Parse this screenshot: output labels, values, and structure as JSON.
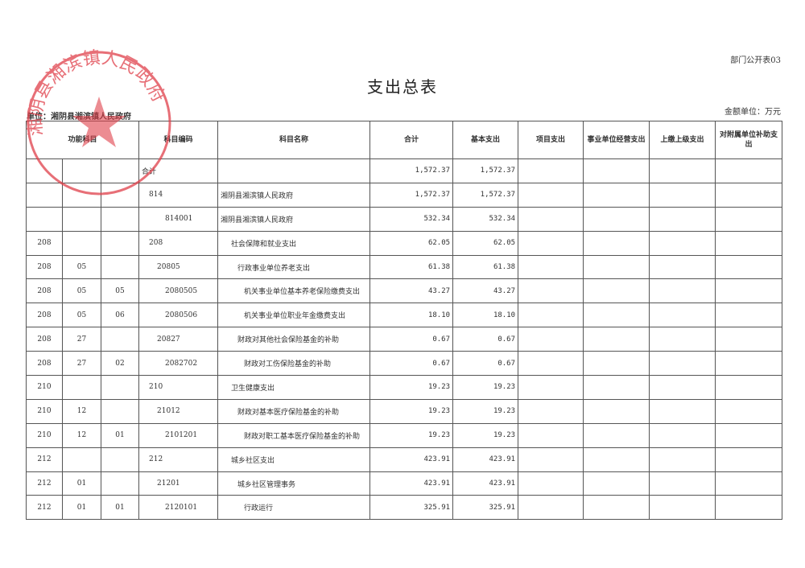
{
  "form_number": "部门公开表03",
  "title": "支出总表",
  "unit_label": "单位：湘阴县湘滨镇人民政府",
  "money_unit": "金额单位：万元",
  "stamp": {
    "text": "湘阴县湘滨镇人民政府",
    "color": "#e0404a"
  },
  "headers": [
    "功能科目",
    "科目编码",
    "科目名称",
    "合计",
    "基本支出",
    "项目支出",
    "事业单位经营支出",
    "上缴上级支出",
    "对附属单位补助支出"
  ],
  "rows": [
    {
      "f1": "",
      "f2": "",
      "f3": "",
      "code": "合计",
      "name": "",
      "total": "1,572.37",
      "basic": "1,572.37"
    },
    {
      "f1": "",
      "f2": "",
      "f3": "",
      "code": "814",
      "name": "湘阴县湘滨镇人民政府",
      "total": "1,572.37",
      "basic": "1,572.37"
    },
    {
      "f1": "",
      "f2": "",
      "f3": "",
      "code": "814001",
      "name": "湘阴县湘滨镇人民政府",
      "total": "532.34",
      "basic": "532.34"
    },
    {
      "f1": "208",
      "f2": "",
      "f3": "",
      "code": "208",
      "name": "社会保障和就业支出",
      "total": "62.05",
      "basic": "62.05"
    },
    {
      "f1": "208",
      "f2": "05",
      "f3": "",
      "code": "20805",
      "name": "行政事业单位养老支出",
      "total": "61.38",
      "basic": "61.38"
    },
    {
      "f1": "208",
      "f2": "05",
      "f3": "05",
      "code": "2080505",
      "name": "机关事业单位基本养老保险缴费支出",
      "total": "43.27",
      "basic": "43.27"
    },
    {
      "f1": "208",
      "f2": "05",
      "f3": "06",
      "code": "2080506",
      "name": "机关事业单位职业年金缴费支出",
      "total": "18.10",
      "basic": "18.10"
    },
    {
      "f1": "208",
      "f2": "27",
      "f3": "",
      "code": "20827",
      "name": "财政对其他社会保险基金的补助",
      "total": "0.67",
      "basic": "0.67"
    },
    {
      "f1": "208",
      "f2": "27",
      "f3": "02",
      "code": "2082702",
      "name": "财政对工伤保险基金的补助",
      "total": "0.67",
      "basic": "0.67"
    },
    {
      "f1": "210",
      "f2": "",
      "f3": "",
      "code": "210",
      "name": "卫生健康支出",
      "total": "19.23",
      "basic": "19.23"
    },
    {
      "f1": "210",
      "f2": "12",
      "f3": "",
      "code": "21012",
      "name": "财政对基本医疗保险基金的补助",
      "total": "19.23",
      "basic": "19.23"
    },
    {
      "f1": "210",
      "f2": "12",
      "f3": "01",
      "code": "2101201",
      "name": "财政对职工基本医疗保险基金的补助",
      "total": "19.23",
      "basic": "19.23"
    },
    {
      "f1": "212",
      "f2": "",
      "f3": "",
      "code": "212",
      "name": "城乡社区支出",
      "total": "423.91",
      "basic": "423.91"
    },
    {
      "f1": "212",
      "f2": "01",
      "f3": "",
      "code": "21201",
      "name": "城乡社区管理事务",
      "total": "423.91",
      "basic": "423.91"
    },
    {
      "f1": "212",
      "f2": "01",
      "f3": "01",
      "code": "2120101",
      "name": "行政运行",
      "total": "325.91",
      "basic": "325.91"
    }
  ]
}
